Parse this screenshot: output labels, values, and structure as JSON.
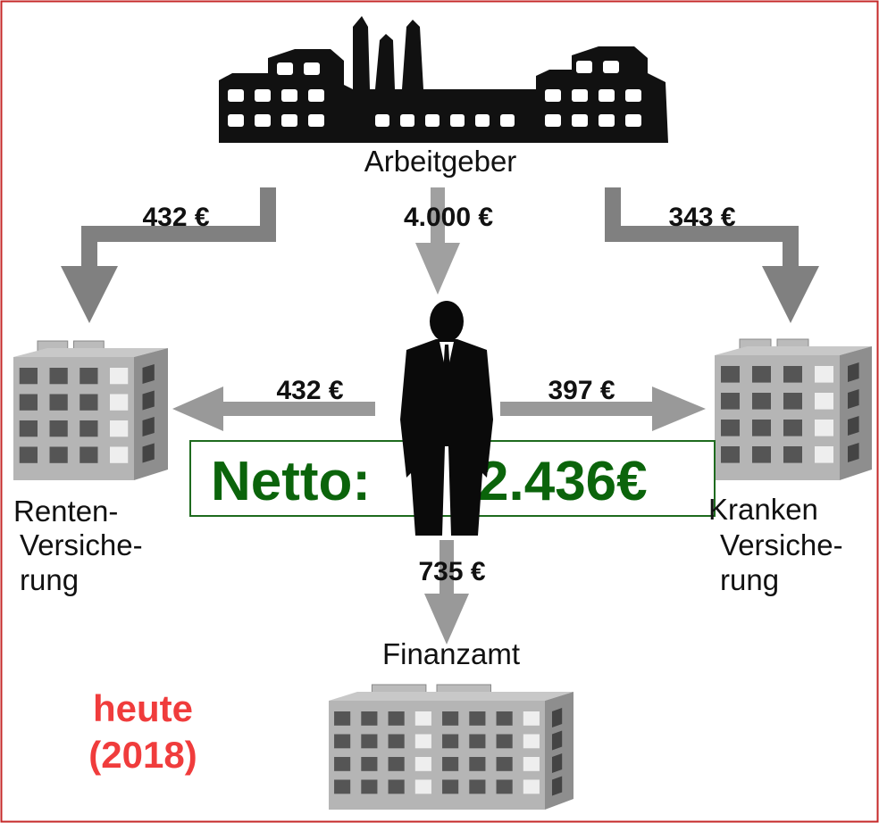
{
  "employer": "Arbeitgeber",
  "flows": {
    "employer_to_pension": "432 €",
    "employer_to_employee": "4.000 €",
    "employer_to_health": "343 €",
    "employee_to_pension": "432 €",
    "employee_to_health": "397 €",
    "employee_to_tax": "735 €"
  },
  "net": {
    "label": "Netto:",
    "amount": "2.436€"
  },
  "pension": [
    "Renten-",
    "Versiche-",
    "rung"
  ],
  "health": [
    "Kranken",
    "Versiche-",
    "rung"
  ],
  "tax_office": "Finanzamt",
  "note": [
    "heute",
    "(2018)"
  ]
}
